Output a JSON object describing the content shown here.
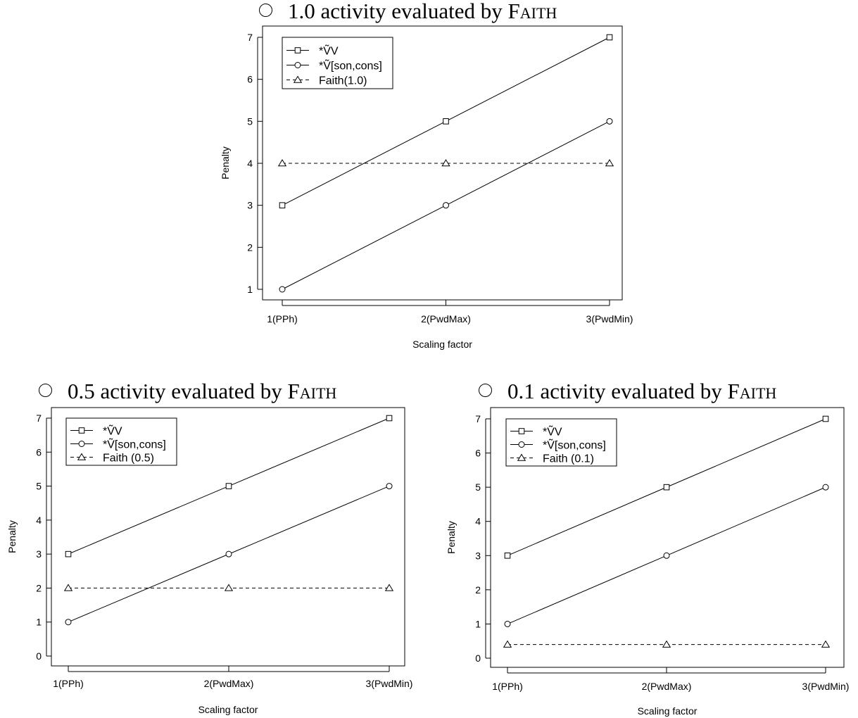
{
  "chart_data": [
    {
      "type": "line",
      "title_prefix": "1.0 activity evaluated by ",
      "title_keyword": "Faith",
      "xlabel": "Scaling factor",
      "ylabel": "Penalty",
      "categories": [
        "1(PPh)",
        "2(PwdMax)",
        "3(PwdMin)"
      ],
      "ylim": [
        1,
        7
      ],
      "yticks": [
        1,
        2,
        3,
        4,
        5,
        6,
        7
      ],
      "legend_position": "top-left",
      "series": [
        {
          "name": "*ṼV",
          "values": [
            3,
            5,
            7
          ],
          "marker": "square",
          "dash": "solid"
        },
        {
          "name": "*Ṽ[son,cons]",
          "values": [
            1,
            3,
            5
          ],
          "marker": "circle",
          "dash": "solid"
        },
        {
          "name": "Faith(1.0)",
          "values": [
            4,
            4,
            4
          ],
          "marker": "triangle",
          "dash": "dashed"
        }
      ]
    },
    {
      "type": "line",
      "title_prefix": "0.5 activity evaluated by ",
      "title_keyword": "Faith",
      "xlabel": "Scaling factor",
      "ylabel": "Penalty",
      "categories": [
        "1(PPh)",
        "2(PwdMax)",
        "3(PwdMin)"
      ],
      "ylim": [
        0,
        7
      ],
      "yticks": [
        0,
        1,
        2,
        3,
        4,
        5,
        6,
        7
      ],
      "legend_position": "top-left",
      "series": [
        {
          "name": "*ṼV",
          "values": [
            3,
            5,
            7
          ],
          "marker": "square",
          "dash": "solid"
        },
        {
          "name": "*Ṽ[son,cons]",
          "values": [
            1,
            3,
            5
          ],
          "marker": "circle",
          "dash": "solid"
        },
        {
          "name": "Faith (0.5)",
          "values": [
            2,
            2,
            2
          ],
          "marker": "triangle",
          "dash": "dashed"
        }
      ]
    },
    {
      "type": "line",
      "title_prefix": "0.1 activity evaluated by ",
      "title_keyword": "Faith",
      "xlabel": "Scaling factor",
      "ylabel": "Penalty",
      "categories": [
        "1(PPh)",
        "2(PwdMax)",
        "3(PwdMin)"
      ],
      "ylim": [
        0,
        7
      ],
      "yticks": [
        0,
        1,
        2,
        3,
        4,
        5,
        6,
        7
      ],
      "legend_position": "top-left",
      "series": [
        {
          "name": "*ṼV",
          "values": [
            3,
            5,
            7
          ],
          "marker": "square",
          "dash": "solid"
        },
        {
          "name": "*Ṽ[son,cons]",
          "values": [
            1,
            3,
            5
          ],
          "marker": "circle",
          "dash": "solid"
        },
        {
          "name": "Faith (0.1)",
          "values": [
            0.4,
            0.4,
            0.4
          ],
          "marker": "triangle",
          "dash": "dashed"
        }
      ]
    }
  ]
}
